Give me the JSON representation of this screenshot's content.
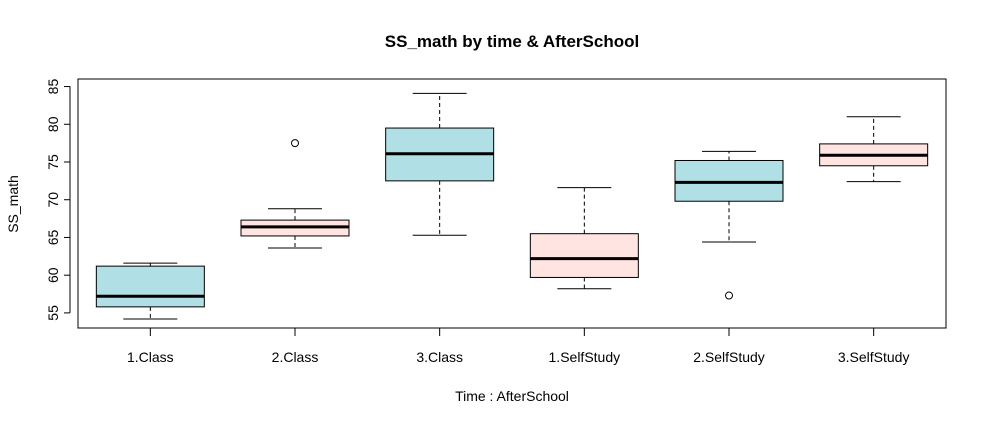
{
  "chart_data": {
    "type": "boxplot",
    "title": "SS_math by time & AfterSchool",
    "xlabel": "Time : AfterSchool",
    "ylabel": "SS_math",
    "ylim": [
      53,
      86
    ],
    "yticks": [
      55,
      60,
      65,
      70,
      75,
      80,
      85
    ],
    "colors": {
      "Class": "#b0dfe5",
      "SelfStudy": "#ffe4e1",
      "Class_group": "#b0dfe5"
    },
    "boxes": [
      {
        "label": "1.Class",
        "fill": "#b0dfe5",
        "min": 54.2,
        "q1": 55.8,
        "median": 57.2,
        "q3": 61.2,
        "max": 61.6,
        "outliers": []
      },
      {
        "label": "2.Class",
        "fill": "#ffe4e1",
        "min": 63.6,
        "q1": 65.2,
        "median": 66.4,
        "q3": 67.3,
        "max": 68.8,
        "outliers": [
          77.5
        ]
      },
      {
        "label": "3.Class",
        "fill": "#b0dfe5",
        "min": 65.3,
        "q1": 72.5,
        "median": 76.1,
        "q3": 79.5,
        "max": 84.1,
        "outliers": []
      },
      {
        "label": "1.SelfStudy",
        "fill": "#ffe4e1",
        "min": 58.2,
        "q1": 59.7,
        "median": 62.2,
        "q3": 65.5,
        "max": 71.6,
        "outliers": []
      },
      {
        "label": "2.SelfStudy",
        "fill": "#b0dfe5",
        "min": 64.4,
        "q1": 69.8,
        "median": 72.3,
        "q3": 75.2,
        "max": 76.4,
        "outliers": [
          57.3
        ]
      },
      {
        "label": "3.SelfStudy",
        "fill": "#ffe4e1",
        "min": 72.4,
        "q1": 74.5,
        "median": 75.9,
        "q3": 77.4,
        "max": 81.0,
        "outliers": []
      }
    ]
  }
}
